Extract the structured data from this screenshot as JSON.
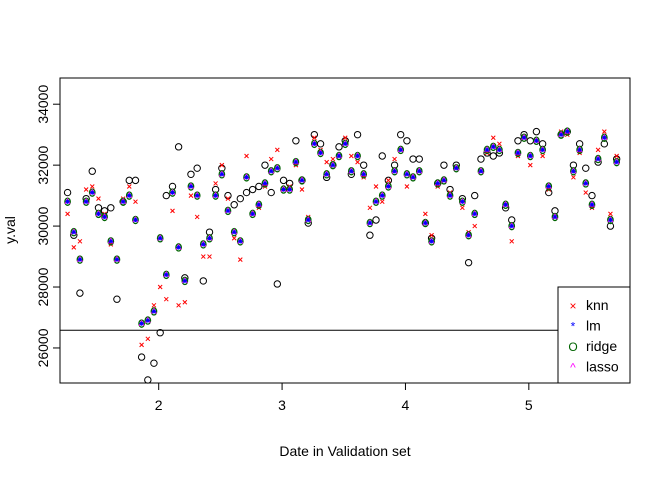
{
  "chart_data": {
    "type": "scatter",
    "xlabel": "Date in Validation set",
    "ylabel": "y.val",
    "x_ticks": [
      2,
      3,
      4,
      5
    ],
    "x_tick_labels": [
      "2",
      "3",
      "4",
      "5"
    ],
    "y_ticks": [
      26000,
      28000,
      30000,
      32000,
      34000
    ],
    "y_tick_labels": [
      "26000",
      "28000",
      "30000",
      "32000",
      "34000"
    ],
    "xlim": [
      1.2,
      5.82
    ],
    "ylim": [
      24850,
      34860
    ],
    "hline": 26580,
    "legend_position": "bottomright",
    "grid": false,
    "legend": [
      {
        "label": "knn",
        "symbol": "×",
        "color": "#ff0000"
      },
      {
        "label": "lm",
        "symbol": "*",
        "color": "#0000ff"
      },
      {
        "label": "ridge",
        "symbol": "O",
        "color": "#006400"
      },
      {
        "label": "lasso",
        "symbol": "^",
        "color": "#ff00ff"
      }
    ],
    "colors": {
      "actual": "#000000",
      "knn": "#ff0000",
      "lm": "#0000ff",
      "ridge": "#006400",
      "lasso": "#ff00ff"
    },
    "x": [
      1.2614,
      1.3119,
      1.3614,
      1.4119,
      1.4614,
      1.5119,
      1.5614,
      1.6119,
      1.6614,
      1.7119,
      1.7614,
      1.8119,
      1.8614,
      1.9119,
      1.9614,
      2.0119,
      2.0614,
      2.1119,
      2.1614,
      2.2119,
      2.2614,
      2.3119,
      2.3614,
      2.4119,
      2.4614,
      2.5119,
      2.5614,
      2.6119,
      2.6614,
      2.7119,
      2.7614,
      2.8119,
      2.8614,
      2.9119,
      2.9614,
      3.0119,
      3.0614,
      3.1119,
      3.1614,
      3.2119,
      3.2614,
      3.3119,
      3.3614,
      3.4119,
      3.4614,
      3.5119,
      3.5614,
      3.6119,
      3.6614,
      3.7119,
      3.7614,
      3.8119,
      3.8614,
      3.9119,
      3.9614,
      4.0119,
      4.0614,
      4.1119,
      4.1614,
      4.2119,
      4.2614,
      4.3119,
      4.3614,
      4.4119,
      4.4614,
      4.5119,
      4.5614,
      4.6119,
      4.6614,
      4.7119,
      4.7614,
      4.8119,
      4.8614,
      4.9119,
      4.9614,
      5.0119,
      5.0614,
      5.1119,
      5.1614,
      5.2119,
      5.2614,
      5.3119,
      5.3614,
      5.4119,
      5.4614,
      5.5119,
      5.5614,
      5.6119,
      5.6614,
      5.7119
    ],
    "series": [
      {
        "key": "actual",
        "values": [
          31100,
          29700,
          27800,
          30900,
          31800,
          30600,
          30500,
          30600,
          27600,
          30800,
          31500,
          31500,
          25700,
          24950,
          25500,
          26500,
          31000,
          31300,
          32600,
          28300,
          31700,
          31900,
          28200,
          29800,
          31200,
          31900,
          31000,
          30700,
          30900,
          31100,
          31200,
          31300,
          32000,
          31100,
          28100,
          31500,
          31400,
          32800,
          31500,
          30100,
          33000,
          32700,
          31600,
          32000,
          32600,
          32800,
          31700,
          33000,
          32000,
          29700,
          30200,
          32300,
          31500,
          32000,
          33000,
          32800,
          32200,
          32200,
          30100,
          29600,
          31400,
          32000,
          31200,
          32000,
          30900,
          28800,
          31000,
          32200,
          32400,
          32300,
          32400,
          30600,
          30200,
          32800,
          33000,
          32800,
          33100,
          32700,
          31100,
          30500,
          33000,
          33100,
          32000,
          32700,
          31900,
          31000,
          32100,
          32700,
          30000,
          32200
        ]
      },
      {
        "key": "knn",
        "values": [
          30400,
          29300,
          29500,
          31200,
          31300,
          30900,
          30400,
          29400,
          28900,
          30900,
          31300,
          30800,
          26100,
          26300,
          27400,
          28000,
          27600,
          30500,
          27400,
          27500,
          31000,
          30300,
          29000,
          29000,
          31400,
          32000,
          30900,
          29600,
          28900,
          32300,
          30400,
          30600,
          31300,
          32200,
          32500,
          31200,
          31300,
          32000,
          31200,
          30300,
          32900,
          32500,
          32100,
          32200,
          32300,
          32900,
          32300,
          32100,
          31600,
          30600,
          31300,
          30800,
          31500,
          32200,
          32500,
          31300,
          31600,
          31800,
          30400,
          29700,
          31300,
          31500,
          31100,
          31900,
          30600,
          29800,
          30000,
          31800,
          32400,
          32900,
          32700,
          30700,
          29500,
          32300,
          32900,
          32000,
          32800,
          32300,
          31200,
          30300,
          33100,
          33000,
          31600,
          32400,
          31100,
          30600,
          32500,
          33100,
          30400,
          32300
        ]
      },
      {
        "key": "model",
        "values": [
          30800,
          29800,
          28900,
          30800,
          31100,
          30400,
          30300,
          29500,
          28900,
          30800,
          31000,
          30200,
          26800,
          26900,
          27200,
          29600,
          28400,
          31100,
          29300,
          28200,
          31300,
          31000,
          29400,
          29600,
          31000,
          31700,
          30500,
          29800,
          29500,
          31600,
          30400,
          30700,
          31400,
          31800,
          31900,
          31200,
          31200,
          32100,
          31500,
          30200,
          32700,
          32400,
          31700,
          32000,
          32300,
          32700,
          31800,
          32300,
          31700,
          30100,
          30800,
          31000,
          31300,
          31800,
          32500,
          31700,
          31600,
          31800,
          30100,
          29500,
          31400,
          31500,
          31000,
          31900,
          30800,
          29700,
          30400,
          31800,
          32500,
          32600,
          32500,
          30700,
          30000,
          32400,
          32900,
          32300,
          32800,
          32500,
          31300,
          30300,
          33000,
          33100,
          31800,
          32500,
          31400,
          30700,
          32200,
          32900,
          30200,
          32100
        ]
      }
    ]
  }
}
